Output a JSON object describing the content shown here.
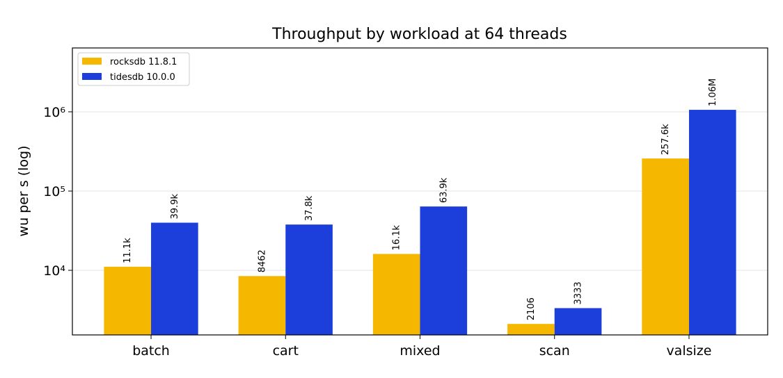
{
  "chart_data": {
    "type": "bar",
    "title": "Throughput by workload at 64 threads",
    "y_label": "wu per s (log)",
    "categories": [
      "batch",
      "cart",
      "mixed",
      "scan",
      "valsize"
    ],
    "series": [
      {
        "name": "rocksdb 11.8.1",
        "color": "#f5b700",
        "values": [
          11100,
          8462,
          16100,
          2106,
          257600
        ],
        "value_labels": [
          "11.1k",
          "8462",
          "16.1k",
          "2106",
          "257.6k"
        ]
      },
      {
        "name": "tidesdb 10.0.0",
        "color": "#1c3fdc",
        "values": [
          39900,
          37800,
          63900,
          3333,
          1060000
        ],
        "value_labels": [
          "39.9k",
          "37.8k",
          "63.9k",
          "3333",
          "1.06M"
        ]
      }
    ],
    "y_scale": "log",
    "ylim": [
      1530,
      6400000
    ],
    "yticks": [
      {
        "value": 10000,
        "label": "10⁴"
      },
      {
        "value": 100000,
        "label": "10⁵"
      },
      {
        "value": 1000000,
        "label": "10⁶"
      }
    ],
    "grid": true,
    "legend": "upper left"
  }
}
